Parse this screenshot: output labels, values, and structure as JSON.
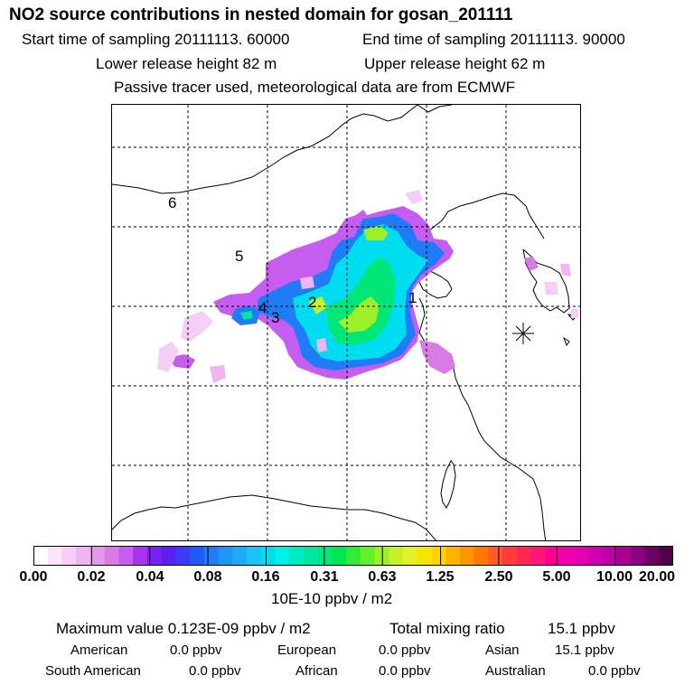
{
  "title": "NO2 source contributions in nested domain for gosan_201111",
  "start_label": "Start time of sampling 20111113. 60000",
  "end_label": "End time of sampling 20111113. 90000",
  "lower_label": "Lower release height   82 m",
  "upper_label": "Upper release height   62 m",
  "tracer_label": "Passive tracer used, meteorological data are from ECMWF",
  "map": {
    "region_labels": [
      "1",
      "2",
      "3",
      "4",
      "5",
      "6"
    ]
  },
  "chart_data": {
    "type": "heatmap",
    "colorbar": {
      "tick_labels": [
        "0.00",
        "0.02",
        "0.04",
        "0.08",
        "0.16",
        "0.31",
        "0.63",
        "1.25",
        "2.50",
        "5.00",
        "10.00",
        "20.00"
      ],
      "colors": [
        "#ffffff",
        "#fbe5fb",
        "#f5cdf5",
        "#f0b4f0",
        "#e59ae9",
        "#d97be5",
        "#c65cf0",
        "#a832f0",
        "#7a20f0",
        "#5a20f0",
        "#3c3cf5",
        "#1e5af5",
        "#1e7cf5",
        "#1e96f5",
        "#1eaaf5",
        "#1ec3f5",
        "#00dcf0",
        "#00f0e6",
        "#00ebc3",
        "#00e6a0",
        "#00e678",
        "#00e650",
        "#32eb32",
        "#64f028",
        "#9bf028",
        "#c8f028",
        "#e6f028",
        "#f5e600",
        "#ffd200",
        "#ffb400",
        "#ff9600",
        "#ff7800",
        "#ff5a28",
        "#ff3c3c",
        "#ff2850",
        "#ff1478",
        "#ff0096",
        "#f000aa",
        "#e600b4",
        "#d200b4",
        "#be00aa",
        "#aa0096",
        "#8c0082",
        "#6e0064",
        "#500046"
      ],
      "unit": "10E-10 ppbv / m2"
    }
  },
  "max_label": "Maximum value  0.123E-09 ppbv / m2",
  "total_label": "Total mixing ratio",
  "total_value": "15.1 ppbv",
  "regions": {
    "american": {
      "name": "American",
      "value": "0.0 ppbv"
    },
    "european": {
      "name": "European",
      "value": "0.0 ppbv"
    },
    "asian": {
      "name": "Asian",
      "value": "15.1 ppbv"
    },
    "south_american": {
      "name": "South American",
      "value": "0.0 ppbv"
    },
    "african": {
      "name": "African",
      "value": "0.0 ppbv"
    },
    "australian": {
      "name": "Australian",
      "value": "0.0 ppbv"
    }
  }
}
